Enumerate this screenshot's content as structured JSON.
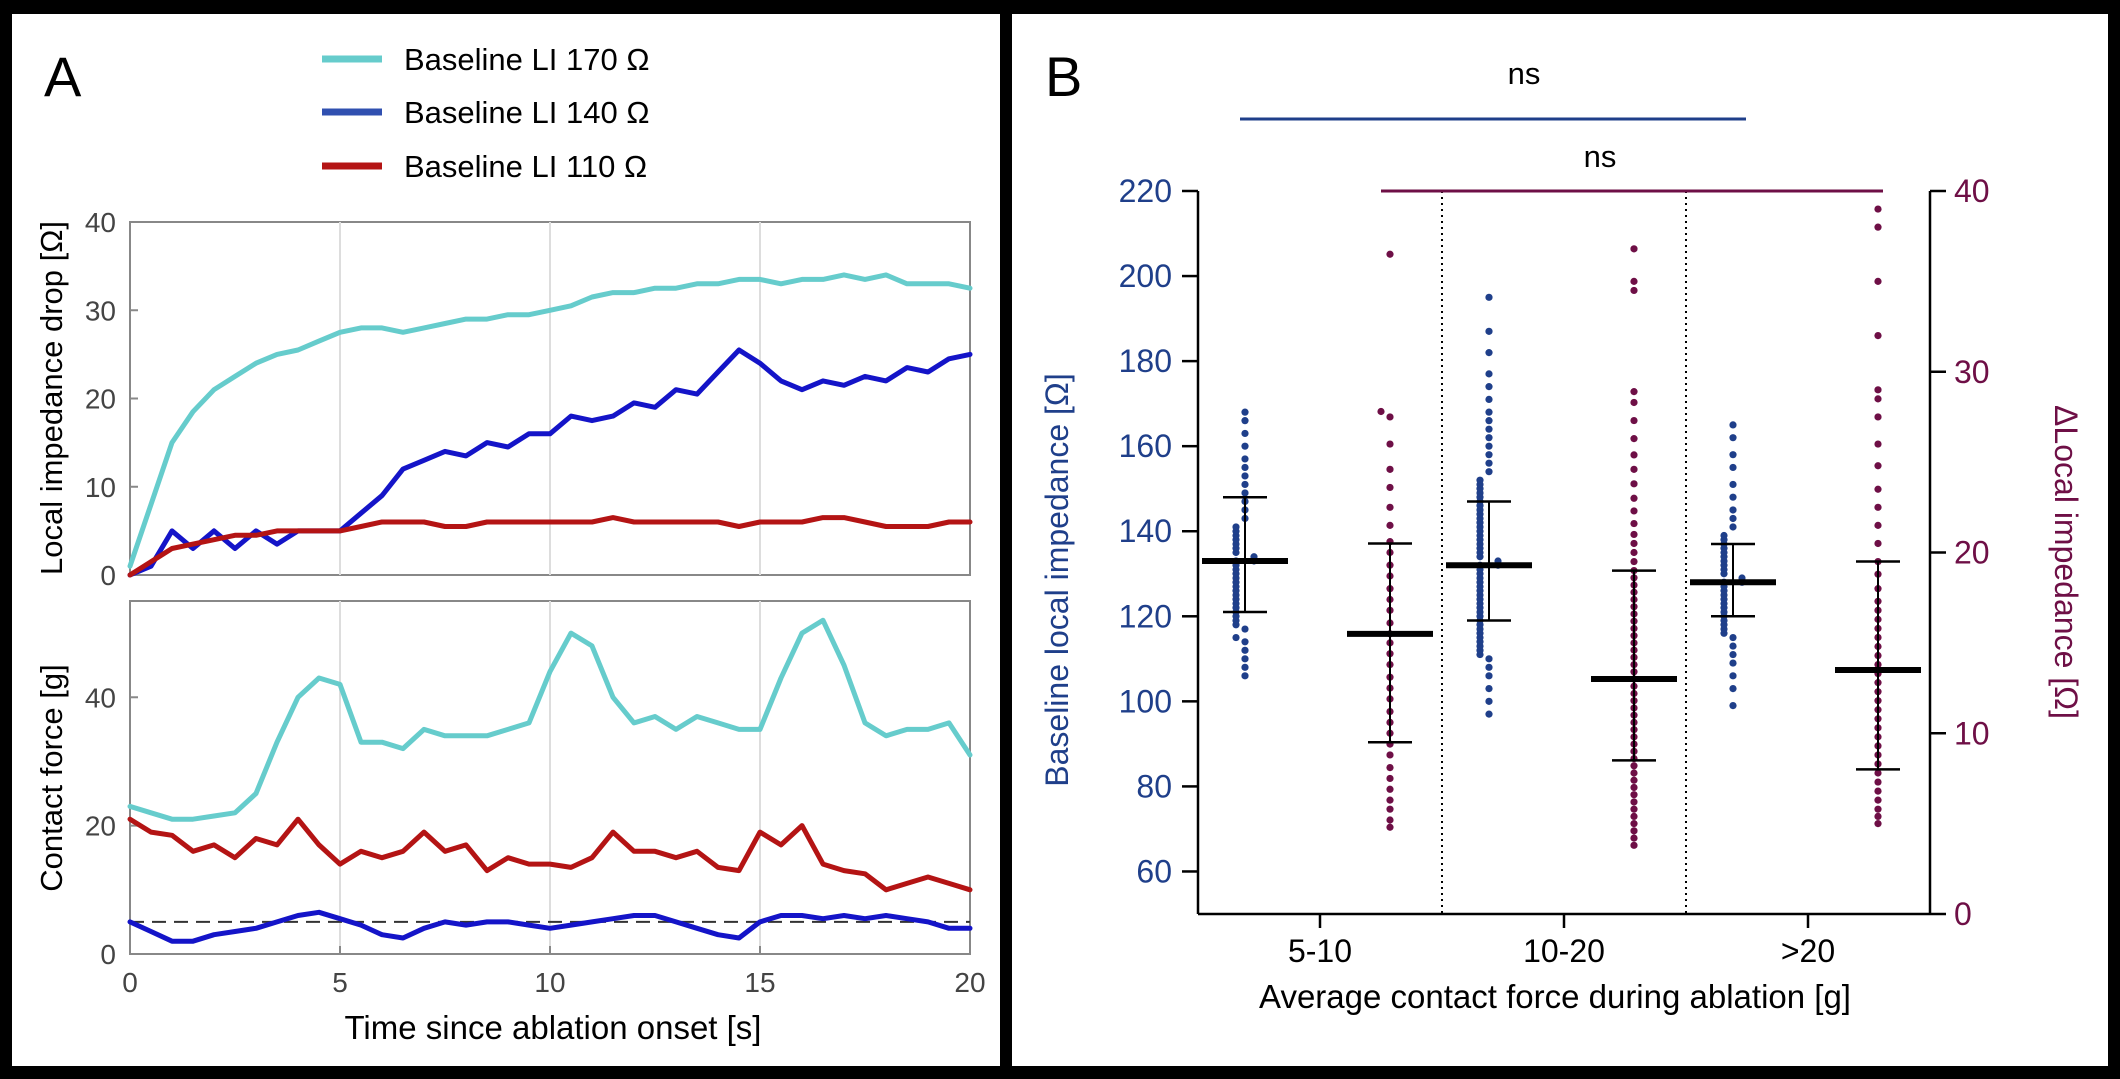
{
  "panels": {
    "a_label": "A",
    "b_label": "B"
  },
  "colors": {
    "cyan": "#66CCCC",
    "blue": "#1414C8",
    "red": "#B41414",
    "navy": "#1F3F8A",
    "maroon": "#6E0F46"
  },
  "chart_data": [
    {
      "id": "A-top",
      "type": "line",
      "ylabel": "Local impedance drop [Ω]",
      "xlim": [
        0,
        20
      ],
      "ylim": [
        0,
        40
      ],
      "yticks": [
        0,
        10,
        20,
        30,
        40
      ],
      "grid": "vertical at x=5,10,15",
      "legend_position": "top",
      "legend": [
        "Baseline LI 170 Ω",
        "Baseline LI 140 Ω",
        "Baseline LI 110 Ω"
      ],
      "series": [
        {
          "name": "Baseline LI 170 Ω",
          "color": "#66CCCC",
          "x": [
            0,
            0.5,
            1,
            1.5,
            2,
            2.5,
            3,
            3.5,
            4,
            4.5,
            5,
            5.5,
            6,
            6.5,
            7,
            7.5,
            8,
            8.5,
            9,
            9.5,
            10,
            10.5,
            11,
            11.5,
            12,
            12.5,
            13,
            13.5,
            14,
            14.5,
            15,
            15.5,
            16,
            16.5,
            17,
            17.5,
            18,
            18.5,
            19,
            19.5,
            20
          ],
          "y": [
            1,
            8,
            15,
            18.5,
            21,
            22.5,
            24,
            25,
            25.5,
            26.5,
            27.5,
            28,
            28,
            27.5,
            28,
            28.5,
            29,
            29,
            29.5,
            29.5,
            30,
            30.5,
            31.5,
            32,
            32,
            32.5,
            32.5,
            33,
            33,
            33.5,
            33.5,
            33,
            33.5,
            33.5,
            34,
            33.5,
            34,
            33,
            33,
            33,
            32.5
          ]
        },
        {
          "name": "Baseline LI 140 Ω",
          "color": "#1414C8",
          "x": [
            0,
            0.5,
            1,
            1.5,
            2,
            2.5,
            3,
            3.5,
            4,
            4.5,
            5,
            5.5,
            6,
            6.5,
            7,
            7.5,
            8,
            8.5,
            9,
            9.5,
            10,
            10.5,
            11,
            11.5,
            12,
            12.5,
            13,
            13.5,
            14,
            14.5,
            15,
            15.5,
            16,
            16.5,
            17,
            17.5,
            18,
            18.5,
            19,
            19.5,
            20
          ],
          "y": [
            0,
            1,
            5,
            3,
            5,
            3,
            5,
            3.5,
            5,
            5,
            5,
            7,
            9,
            12,
            13,
            14,
            13.5,
            15,
            14.5,
            16,
            16,
            18,
            17.5,
            18,
            19.5,
            19,
            21,
            20.5,
            23,
            25.5,
            24,
            22,
            21,
            22,
            21.5,
            22.5,
            22,
            23.5,
            23,
            24.5,
            25
          ]
        },
        {
          "name": "Baseline LI 110 Ω",
          "color": "#B41414",
          "x": [
            0,
            0.5,
            1,
            1.5,
            2,
            2.5,
            3,
            3.5,
            4,
            4.5,
            5,
            5.5,
            6,
            6.5,
            7,
            7.5,
            8,
            8.5,
            9,
            9.5,
            10,
            10.5,
            11,
            11.5,
            12,
            12.5,
            13,
            13.5,
            14,
            14.5,
            15,
            15.5,
            16,
            16.5,
            17,
            17.5,
            18,
            18.5,
            19,
            19.5,
            20
          ],
          "y": [
            0,
            1.5,
            3,
            3.5,
            4,
            4.5,
            4.5,
            5,
            5,
            5,
            5,
            5.5,
            6,
            6,
            6,
            5.5,
            5.5,
            6,
            6,
            6,
            6,
            6,
            6,
            6.5,
            6,
            6,
            6,
            6,
            6,
            5.5,
            6,
            6,
            6,
            6.5,
            6.5,
            6,
            5.5,
            5.5,
            5.5,
            6,
            6
          ]
        }
      ]
    },
    {
      "id": "A-bottom",
      "type": "line",
      "xlabel": "Time since ablation onset [s]",
      "ylabel": "Contact force [g]",
      "xlim": [
        0,
        20
      ],
      "ylim": [
        0,
        55
      ],
      "xticks": [
        0,
        5,
        10,
        15,
        20
      ],
      "yticks": [
        0,
        20,
        40
      ],
      "reference_line": {
        "y": 5,
        "style": "dashed"
      },
      "grid": "vertical at x=5,10,15",
      "series": [
        {
          "name": "Baseline LI 170 Ω",
          "color": "#66CCCC",
          "x": [
            0,
            0.5,
            1,
            1.5,
            2,
            2.5,
            3,
            3.5,
            4,
            4.5,
            5,
            5.5,
            6,
            6.5,
            7,
            7.5,
            8,
            8.5,
            9,
            9.5,
            10,
            10.5,
            11,
            11.5,
            12,
            12.5,
            13,
            13.5,
            14,
            14.5,
            15,
            15.5,
            16,
            16.5,
            17,
            17.5,
            18,
            18.5,
            19,
            19.5,
            20
          ],
          "y": [
            23,
            22,
            21,
            21,
            21.5,
            22,
            25,
            33,
            40,
            43,
            42,
            33,
            33,
            32,
            35,
            34,
            34,
            34,
            35,
            36,
            44,
            50,
            48,
            40,
            36,
            37,
            35,
            37,
            36,
            35,
            35,
            43,
            50,
            52,
            45,
            36,
            34,
            35,
            35,
            36,
            31
          ]
        },
        {
          "name": "Baseline LI 110 Ω",
          "color": "#B41414",
          "x": [
            0,
            0.5,
            1,
            1.5,
            2,
            2.5,
            3,
            3.5,
            4,
            4.5,
            5,
            5.5,
            6,
            6.5,
            7,
            7.5,
            8,
            8.5,
            9,
            9.5,
            10,
            10.5,
            11,
            11.5,
            12,
            12.5,
            13,
            13.5,
            14,
            14.5,
            15,
            15.5,
            16,
            16.5,
            17,
            17.5,
            18,
            18.5,
            19,
            19.5,
            20
          ],
          "y": [
            21,
            19,
            18.5,
            16,
            17,
            15,
            18,
            17,
            21,
            17,
            14,
            16,
            15,
            16,
            19,
            16,
            17,
            13,
            15,
            14,
            14,
            13.5,
            15,
            19,
            16,
            16,
            15,
            16,
            13.5,
            13,
            19,
            17,
            20,
            14,
            13,
            12.5,
            10,
            11,
            12,
            11,
            10
          ]
        },
        {
          "name": "Baseline LI 140 Ω",
          "color": "#1414C8",
          "x": [
            0,
            0.5,
            1,
            1.5,
            2,
            2.5,
            3,
            3.5,
            4,
            4.5,
            5,
            5.5,
            6,
            6.5,
            7,
            7.5,
            8,
            8.5,
            9,
            9.5,
            10,
            10.5,
            11,
            11.5,
            12,
            12.5,
            13,
            13.5,
            14,
            14.5,
            15,
            15.5,
            16,
            16.5,
            17,
            17.5,
            18,
            18.5,
            19,
            19.5,
            20
          ],
          "y": [
            5,
            3.5,
            2,
            2,
            3,
            3.5,
            4,
            5,
            6,
            6.5,
            5.5,
            4.5,
            3,
            2.5,
            4,
            5,
            4.5,
            5,
            5,
            4.5,
            4,
            4.5,
            5,
            5.5,
            6,
            6,
            5,
            4,
            3,
            2.5,
            5,
            6,
            6,
            5.5,
            6,
            5.5,
            6,
            5.5,
            5,
            4,
            4
          ]
        }
      ]
    },
    {
      "id": "B",
      "type": "scatter",
      "xlabel": "Average contact force during ablation [g]",
      "ylabel": "Baseline local impedance [Ω]",
      "ylabel_right": "ΔLocal impedance [Ω]",
      "categories": [
        "5-10",
        "10-20",
        ">20"
      ],
      "ylim": [
        50,
        220
      ],
      "yticks": [
        60,
        80,
        100,
        120,
        140,
        160,
        180,
        200,
        220
      ],
      "ylim_right": [
        0,
        40
      ],
      "yticks_right": [
        0,
        10,
        20,
        30,
        40
      ],
      "significance": [
        {
          "label": "ns",
          "from": "5-10",
          "to": ">20",
          "color": "#1F3F8A"
        },
        {
          "label": "ns",
          "from": "5-10",
          "to": ">20",
          "color": "#6E0F46"
        }
      ],
      "series": [
        {
          "name": "Baseline local impedance",
          "axis": "left",
          "color": "#1F3F8A",
          "groups": [
            {
              "category": "5-10",
              "median": 133,
              "q1": 121,
              "q3": 148,
              "values": [
                106,
                108,
                110,
                112,
                114,
                115,
                117,
                118,
                119,
                120,
                121,
                122,
                123,
                124,
                125,
                126,
                127,
                128,
                129,
                130,
                131,
                132,
                133,
                133,
                134,
                135,
                136,
                137,
                138,
                139,
                140,
                141,
                143,
                145,
                147,
                149,
                151,
                153,
                155,
                157,
                160,
                163,
                166,
                168
              ]
            },
            {
              "category": "10-20",
              "median": 132,
              "q1": 119,
              "q3": 147,
              "values": [
                97,
                100,
                103,
                106,
                108,
                110,
                111,
                112,
                113,
                114,
                115,
                116,
                117,
                118,
                119,
                120,
                121,
                122,
                123,
                124,
                125,
                126,
                127,
                128,
                129,
                130,
                131,
                132,
                132,
                133,
                134,
                135,
                136,
                137,
                138,
                139,
                140,
                141,
                142,
                143,
                144,
                145,
                146,
                147,
                148,
                149,
                150,
                151,
                152,
                154,
                156,
                158,
                160,
                162,
                164,
                166,
                168,
                171,
                174,
                177,
                182,
                187,
                195
              ]
            },
            {
              "category": ">20",
              "median": 128,
              "q1": 120,
              "q3": 137,
              "values": [
                99,
                103,
                106,
                109,
                111,
                113,
                115,
                116,
                117,
                118,
                119,
                120,
                121,
                122,
                123,
                124,
                125,
                126,
                127,
                128,
                128,
                129,
                130,
                131,
                132,
                133,
                134,
                135,
                136,
                137,
                138,
                139,
                141,
                143,
                145,
                148,
                151,
                155,
                158,
                162,
                165
              ]
            }
          ]
        },
        {
          "name": "ΔLocal impedance",
          "axis": "right",
          "color": "#6E0F46",
          "groups": [
            {
              "category": "5-10",
              "median": 15.5,
              "q1": 9.5,
              "q3": 20.5,
              "values": [
                4.8,
                5.2,
                5.8,
                6.3,
                6.9,
                7.5,
                8.1,
                8.8,
                9.4,
                10,
                10.6,
                11.2,
                11.9,
                12.5,
                13.1,
                13.8,
                14.4,
                15,
                15.5,
                16.1,
                16.8,
                17.4,
                18,
                18.7,
                19.3,
                20,
                20.6,
                21.5,
                22.5,
                23.6,
                24.6,
                26,
                27.5,
                27.8,
                36.5
              ]
            },
            {
              "category": "10-20",
              "median": 13,
              "q1": 8.5,
              "q3": 19,
              "values": [
                3.8,
                4.2,
                4.6,
                5,
                5.4,
                5.8,
                6.2,
                6.6,
                7,
                7.4,
                7.8,
                8.2,
                8.6,
                9,
                9.4,
                9.8,
                10.2,
                10.6,
                11,
                11.4,
                11.8,
                12.2,
                12.6,
                13,
                13.4,
                13.8,
                14.2,
                14.6,
                15,
                15.4,
                15.8,
                16.2,
                16.6,
                17,
                17.4,
                17.8,
                18.2,
                18.6,
                19,
                19.5,
                20,
                20.5,
                21,
                21.6,
                22.3,
                23,
                23.8,
                24.6,
                25.4,
                26.3,
                27.3,
                28.3,
                28.9,
                34.5,
                35,
                36.8
              ]
            },
            {
              "category": ">20",
              "median": 13.5,
              "q1": 8,
              "q3": 19.5,
              "values": [
                5,
                5.4,
                5.8,
                6.3,
                6.8,
                7.3,
                7.8,
                8.3,
                8.8,
                9.3,
                9.8,
                10.3,
                10.8,
                11.3,
                11.8,
                12.3,
                12.8,
                13.3,
                13.8,
                14.3,
                14.8,
                15.3,
                15.8,
                16.3,
                16.8,
                17.3,
                18,
                18.8,
                19.5,
                20.5,
                21.5,
                22.5,
                23.5,
                24.8,
                26,
                27.5,
                28.5,
                29,
                32,
                35,
                38,
                39
              ]
            }
          ]
        }
      ]
    }
  ]
}
